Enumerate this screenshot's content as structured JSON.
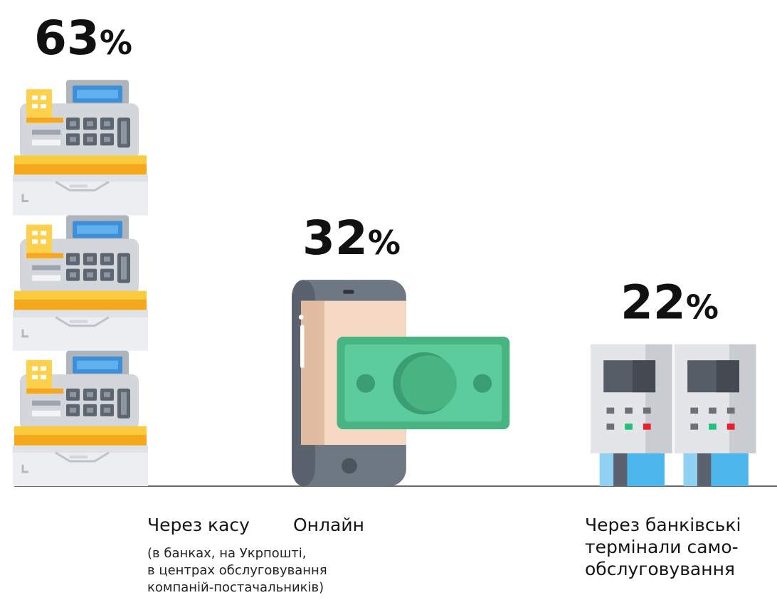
{
  "chart_data": {
    "type": "pictorial",
    "categories": [
      "Через касу",
      "Онлайн",
      "Через банківські\nтермінали само-\nобслуговування"
    ],
    "values": [
      63,
      32,
      22
    ],
    "value_labels": [
      "63%",
      "32%",
      "22%"
    ],
    "notes": [
      "(в банках, на Укрпошті,\nв центрах обслуговування\nкомпаній-постачальників)"
    ]
  }
}
